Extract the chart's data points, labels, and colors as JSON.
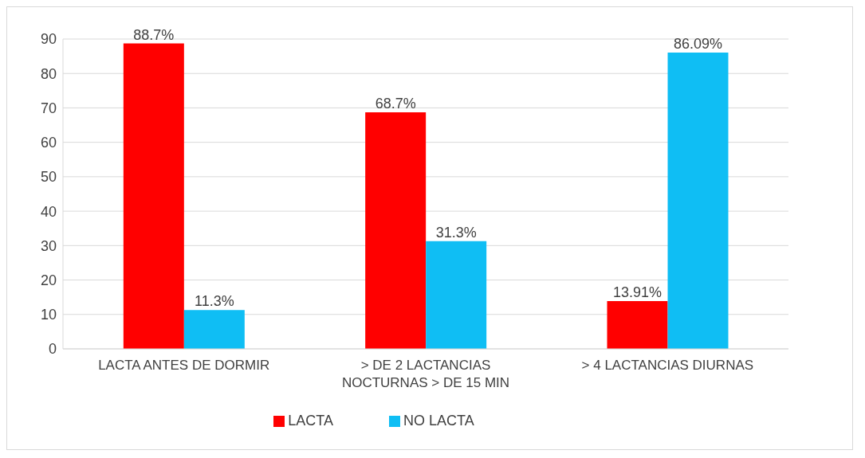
{
  "chart_data": {
    "type": "bar",
    "categories": [
      "LACTA ANTES DE DORMIR",
      "> DE 2 LACTANCIAS NOCTURNAS > DE 15 MIN",
      "> 4 LACTANCIAS DIURNAS"
    ],
    "series": [
      {
        "name": "LACTA",
        "color": "#ff0000",
        "values": [
          88.7,
          68.7,
          13.91
        ],
        "value_labels": [
          "88.7%",
          "68.7%",
          "13.91%"
        ]
      },
      {
        "name": "NO LACTA",
        "color": "#0fbef4",
        "values": [
          11.3,
          31.3,
          86.09
        ],
        "value_labels": [
          "11.3%",
          "31.3%",
          "86.09%"
        ]
      }
    ],
    "ylim": [
      0,
      90
    ],
    "yticks": [
      0,
      10,
      20,
      30,
      40,
      50,
      60,
      70,
      80,
      90
    ],
    "grid": "y",
    "legend": "bottom"
  }
}
